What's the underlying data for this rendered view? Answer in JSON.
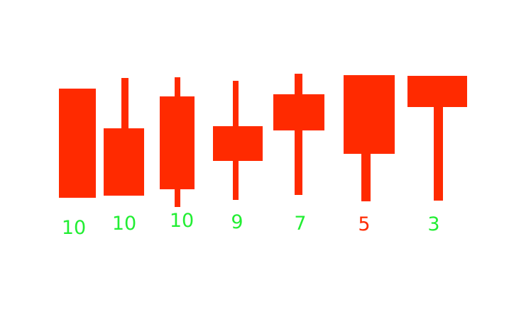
{
  "candle_color": "#ff2a00",
  "items": [
    {
      "label": "10",
      "label_color": "#22ee33"
    },
    {
      "label": "10",
      "label_color": "#22ee33"
    },
    {
      "label": "10",
      "label_color": "#22ee33"
    },
    {
      "label": "9",
      "label_color": "#22ee33"
    },
    {
      "label": "7",
      "label_color": "#22ee33"
    },
    {
      "label": "5",
      "label_color": "#ff2a00"
    },
    {
      "label": "3",
      "label_color": "#22ee33"
    }
  ]
}
